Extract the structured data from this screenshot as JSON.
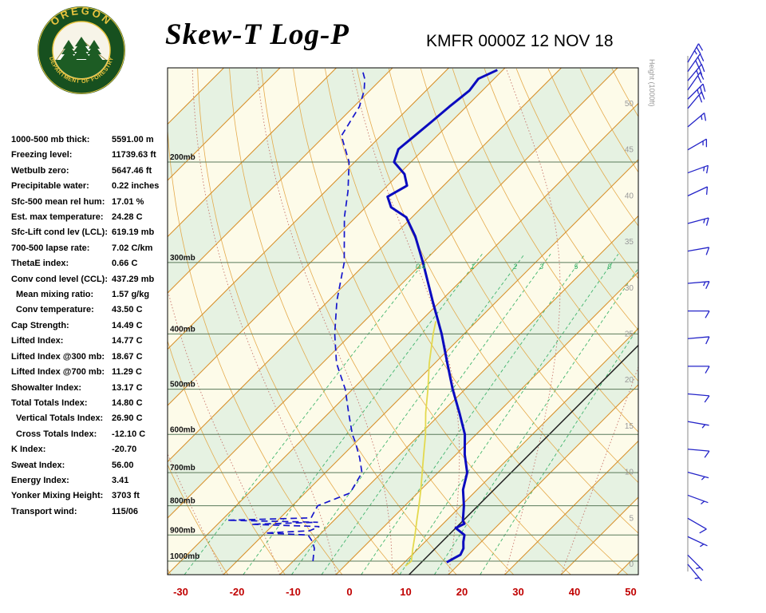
{
  "header": {
    "title": "Skew-T Log-P",
    "station_time": "KMFR 0000Z 12 NOV 18",
    "logo": {
      "top": "OREGON",
      "bottom": "DEPARTMENT OF FORESTRY"
    }
  },
  "indices": [
    {
      "label": "1000-500 mb thick:",
      "value": "5591.00 m",
      "indent": false
    },
    {
      "label": "Freezing level:",
      "value": "11739.63 ft",
      "indent": false
    },
    {
      "label": "Wetbulb zero:",
      "value": "5647.46 ft",
      "indent": false
    },
    {
      "label": "Precipitable water:",
      "value": "0.22 inches",
      "indent": false
    },
    {
      "label": "Sfc-500 mean rel hum:",
      "value": "17.01 %",
      "indent": false
    },
    {
      "label": "Est. max temperature:",
      "value": "24.28 C",
      "indent": false
    },
    {
      "label": "Sfc-Lift cond lev (LCL):",
      "value": "619.19 mb",
      "indent": false
    },
    {
      "label": "700-500 lapse rate:",
      "value": "7.02 C/km",
      "indent": false
    },
    {
      "label": "ThetaE index:",
      "value": "0.66 C",
      "indent": false
    },
    {
      "label": "Conv cond level (CCL):",
      "value": "437.29 mb",
      "indent": false
    },
    {
      "label": "Mean mixing ratio:",
      "value": "1.57 g/kg",
      "indent": true
    },
    {
      "label": "Conv temperature:",
      "value": "43.50 C",
      "indent": true
    },
    {
      "label": "Cap Strength:",
      "value": "14.49 C",
      "indent": false
    },
    {
      "label": "Lifted Index:",
      "value": "14.77 C",
      "indent": false
    },
    {
      "label": "Lifted Index @300 mb:",
      "value": "18.67 C",
      "indent": false
    },
    {
      "label": "Lifted Index @700 mb:",
      "value": "11.29 C",
      "indent": false
    },
    {
      "label": "Showalter Index:",
      "value": "13.17 C",
      "indent": false
    },
    {
      "label": "Total Totals Index:",
      "value": "14.80 C",
      "indent": false
    },
    {
      "label": "Vertical Totals Index:",
      "value": "26.90 C",
      "indent": true
    },
    {
      "label": "Cross Totals Index:",
      "value": "-12.10 C",
      "indent": true
    },
    {
      "label": "K Index:",
      "value": "-20.70",
      "indent": false
    },
    {
      "label": "Sweat Index:",
      "value": "56.00",
      "indent": false
    },
    {
      "label": "Energy Index:",
      "value": "3.41",
      "indent": false
    },
    {
      "label": "Yonker Mixing Height:",
      "value": "3703 ft",
      "indent": false
    },
    {
      "label": "Transport wind:",
      "value": "115/06",
      "indent": false
    }
  ],
  "chart_data": {
    "type": "skewt-log-p",
    "title": "Skew-T Log-P",
    "station": "KMFR",
    "valid_time": "0000Z 12 NOV 18",
    "x_axis": {
      "ticks": [
        -30,
        -20,
        -10,
        0,
        10,
        20,
        30,
        40,
        50
      ],
      "unit": "C",
      "label_color": "#c00000"
    },
    "pressure_lines_mb": [
      200,
      300,
      400,
      500,
      600,
      700,
      800,
      900,
      1000
    ],
    "pressure_label_suffix": "mb",
    "height_axis": {
      "label": "Height (1000ft)",
      "ticks": [
        50,
        45,
        40,
        35,
        30,
        25,
        20,
        15,
        10,
        5,
        0
      ]
    },
    "mixing_ratio_lines_gkg": [
      0.4,
      1,
      2,
      3,
      5,
      8,
      12,
      20
    ],
    "mixing_ratio_labels": [
      "0.4",
      "1",
      "2",
      "3",
      "5",
      "8"
    ],
    "isotherm_step_c": 10,
    "isotherm_range_c": [
      -130,
      60
    ],
    "bold_isotherm_c": 13,
    "temperature_profile": [
      [
        1005,
        17.5
      ],
      [
        990,
        18.0
      ],
      [
        975,
        18.6
      ],
      [
        950,
        18.0
      ],
      [
        925,
        16.8
      ],
      [
        900,
        15.8
      ],
      [
        875,
        13.0
      ],
      [
        860,
        13.8
      ],
      [
        850,
        13.0
      ],
      [
        800,
        10.5
      ],
      [
        750,
        7.5
      ],
      [
        700,
        5.2
      ],
      [
        650,
        1.5
      ],
      [
        600,
        -2.0
      ],
      [
        550,
        -6.8
      ],
      [
        500,
        -12.2
      ],
      [
        450,
        -17.8
      ],
      [
        400,
        -24.0
      ],
      [
        350,
        -31.5
      ],
      [
        300,
        -40.0
      ],
      [
        270,
        -46.0
      ],
      [
        250,
        -51.0
      ],
      [
        240,
        -55.5
      ],
      [
        230,
        -58.0
      ],
      [
        220,
        -56.5
      ],
      [
        210,
        -59.0
      ],
      [
        200,
        -63.0
      ],
      [
        190,
        -64.5
      ],
      [
        180,
        -64.0
      ],
      [
        170,
        -63.5
      ],
      [
        160,
        -63.0
      ],
      [
        150,
        -62.3
      ],
      [
        143,
        -62.8
      ],
      [
        138,
        -61.0
      ]
    ],
    "dewpoint_profile": [
      [
        1000,
        -6.5
      ],
      [
        975,
        -7.5
      ],
      [
        950,
        -8.5
      ],
      [
        925,
        -10.0
      ],
      [
        900,
        -12.0
      ],
      [
        893,
        -20.0
      ],
      [
        885,
        -12.5
      ],
      [
        870,
        -11.5
      ],
      [
        862,
        -24.0
      ],
      [
        855,
        -12.5
      ],
      [
        848,
        -29.0
      ],
      [
        840,
        -14.5
      ],
      [
        820,
        -15.0
      ],
      [
        800,
        -15.5
      ],
      [
        760,
        -12.0
      ],
      [
        700,
        -13.5
      ],
      [
        660,
        -16.5
      ],
      [
        620,
        -20.0
      ],
      [
        600,
        -22.0
      ],
      [
        550,
        -26.5
      ],
      [
        500,
        -31.3
      ],
      [
        450,
        -37.5
      ],
      [
        400,
        -43.0
      ],
      [
        350,
        -48.5
      ],
      [
        300,
        -54.0
      ],
      [
        250,
        -62.0
      ],
      [
        225,
        -66.0
      ],
      [
        200,
        -71.0
      ],
      [
        180,
        -77.0
      ],
      [
        160,
        -79.0
      ],
      [
        150,
        -81.0
      ],
      [
        143,
        -83.0
      ],
      [
        138,
        -85.0
      ]
    ],
    "wetbulb_profile": [
      [
        1020,
        10.8
      ],
      [
        1000,
        11.0
      ],
      [
        950,
        9.0
      ],
      [
        900,
        7.0
      ],
      [
        850,
        4.8
      ],
      [
        800,
        2.5
      ],
      [
        750,
        0.0
      ],
      [
        700,
        -2.8
      ],
      [
        650,
        -5.8
      ],
      [
        600,
        -9.0
      ],
      [
        550,
        -12.8
      ],
      [
        500,
        -16.6
      ],
      [
        450,
        -21.0
      ],
      [
        400,
        -25.5
      ],
      [
        380,
        -27.3
      ]
    ],
    "wind_barbs_format": "[height_kft, dir_deg_from, speed_kt]",
    "wind_barbs": [
      [
        54.5,
        30,
        25
      ],
      [
        53.5,
        35,
        30
      ],
      [
        52.5,
        40,
        25
      ],
      [
        51.5,
        35,
        20
      ],
      [
        50.5,
        45,
        25
      ],
      [
        49.5,
        40,
        20
      ],
      [
        47.5,
        50,
        15
      ],
      [
        45,
        60,
        15
      ],
      [
        42.5,
        70,
        15
      ],
      [
        40,
        65,
        10
      ],
      [
        37,
        75,
        15
      ],
      [
        34,
        80,
        10
      ],
      [
        30.5,
        85,
        15
      ],
      [
        27.5,
        90,
        10
      ],
      [
        24.5,
        85,
        10
      ],
      [
        21.5,
        90,
        10
      ],
      [
        18.5,
        95,
        10
      ],
      [
        15.5,
        100,
        5
      ],
      [
        12.5,
        95,
        10
      ],
      [
        10,
        105,
        5
      ],
      [
        7.5,
        110,
        5
      ],
      [
        5,
        120,
        10
      ],
      [
        3,
        115,
        6
      ],
      [
        1,
        135,
        5
      ],
      [
        0,
        140,
        5
      ]
    ],
    "colors": {
      "band_cream": "#fdfbe9",
      "band_green": "#e6f2e2",
      "isotherm": "#d8922e",
      "dry_adiabat": "#e2a23c",
      "moist_adiabat": "#c06058",
      "mixing_ratio": "#2fae60",
      "pressure_line": "#5a7a5a",
      "temperature": "#0b0bbf",
      "dewpoint": "#1515cc",
      "wetbulb": "#e3d94e",
      "wind_barb": "#2424c8",
      "axis_label_red": "#c00000",
      "height_label_gray": "#999999"
    }
  }
}
